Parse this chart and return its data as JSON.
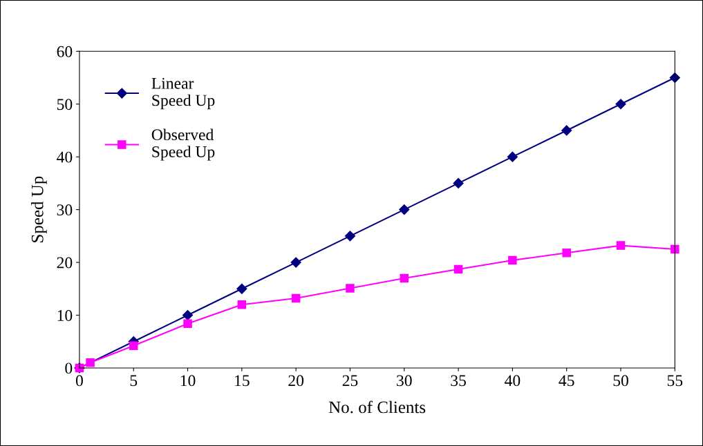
{
  "chart_data": {
    "type": "line",
    "xlabel": "No. of Clients",
    "ylabel": "Speed Up",
    "x": [
      0,
      1,
      5,
      10,
      15,
      20,
      25,
      30,
      35,
      40,
      45,
      50,
      55
    ],
    "series": [
      {
        "name": "Linear\nSpeed Up",
        "color": "#000080",
        "marker": "diamond",
        "x": [
          0,
          5,
          10,
          15,
          20,
          25,
          30,
          35,
          40,
          45,
          50,
          55
        ],
        "values": [
          0,
          5,
          10,
          15,
          20,
          25,
          30,
          35,
          40,
          45,
          50,
          55
        ]
      },
      {
        "name": "Observed\nSpeed Up",
        "color": "#ff00ff",
        "marker": "square",
        "values": [
          0,
          1,
          4.2,
          8.4,
          12.0,
          13.2,
          15.1,
          17.0,
          18.7,
          20.4,
          21.8,
          23.2,
          22.5
        ]
      }
    ],
    "xlim": [
      0,
      55
    ],
    "xticks": [
      0,
      5,
      10,
      15,
      20,
      25,
      30,
      35,
      40,
      45,
      50,
      55
    ],
    "ylim": [
      0,
      60
    ],
    "yticks": [
      0,
      10,
      20,
      30,
      40,
      50,
      60
    ],
    "grid": false,
    "legend": "top left",
    "line_style": "solid"
  }
}
